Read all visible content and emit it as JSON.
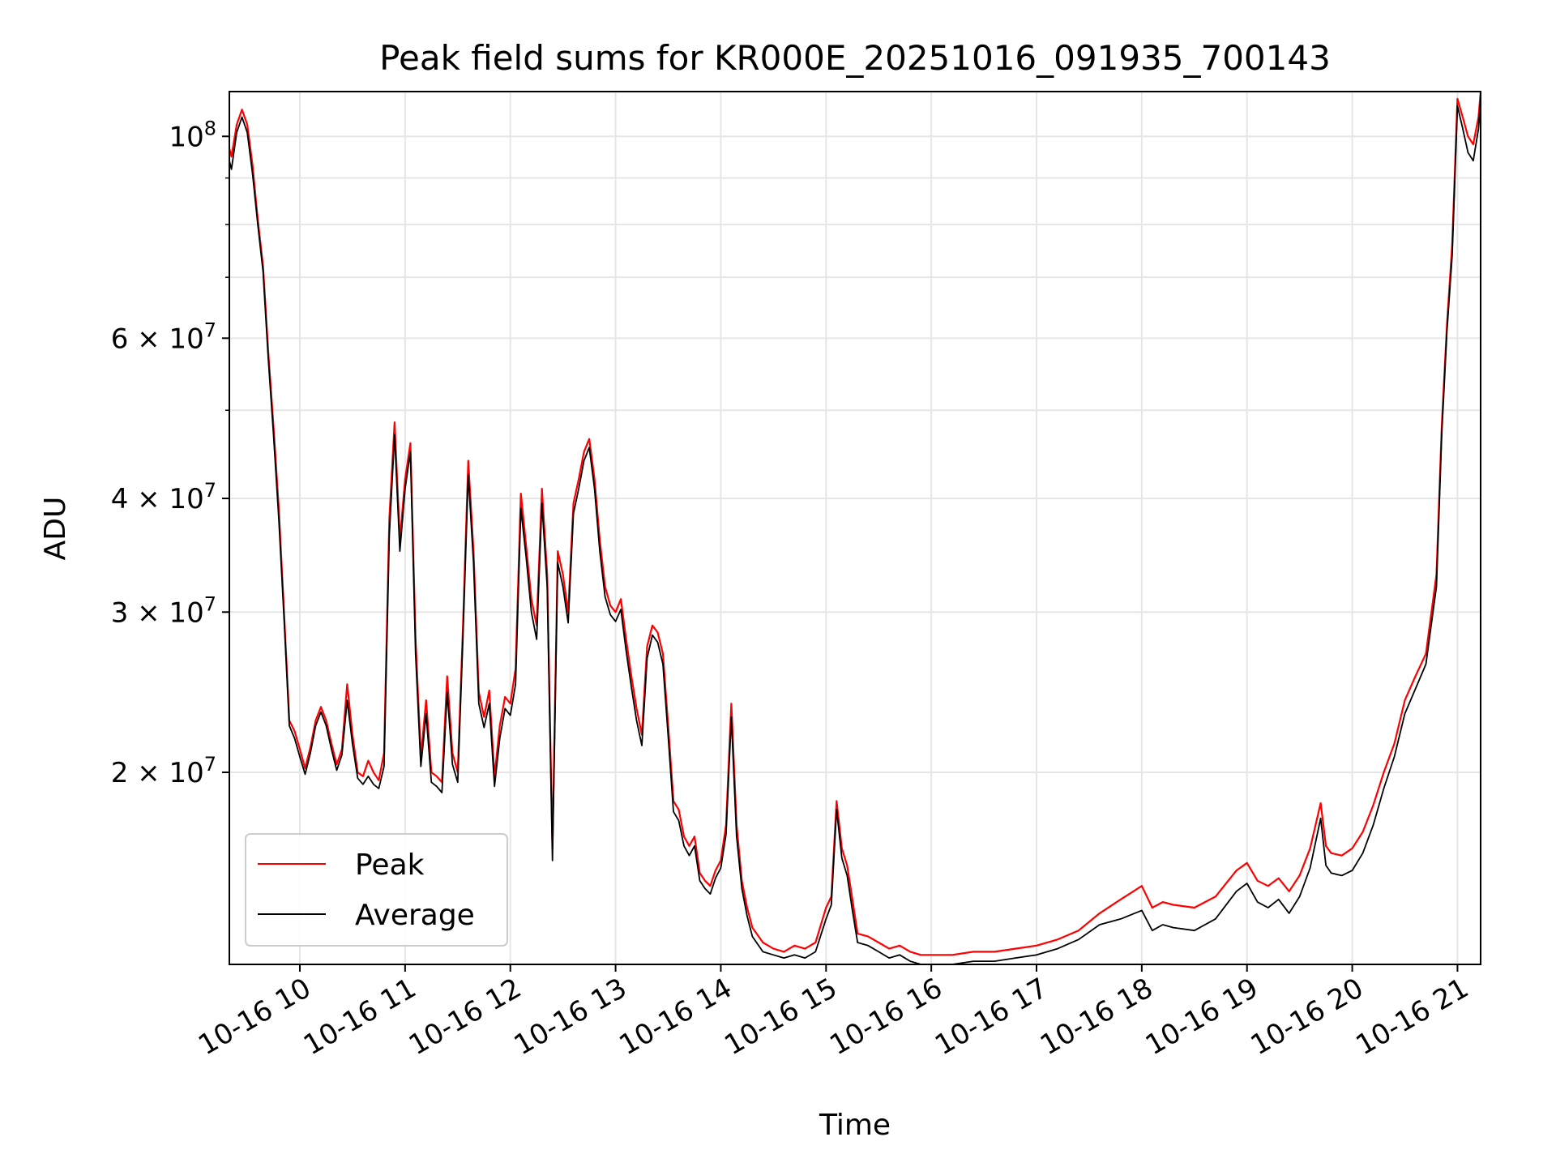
{
  "chart_data": {
    "type": "line",
    "title": "Peak field sums for KR000E_20251016_091935_700143",
    "xlabel": "Time",
    "ylabel": "ADU",
    "yscale": "log",
    "xlim": [
      9.33,
      21.22
    ],
    "ylim": [
      12300000,
      112000000
    ],
    "grid": true,
    "legend_position": "lower-left",
    "x_ticks": [
      {
        "value": 10,
        "label": "10-16 10"
      },
      {
        "value": 11,
        "label": "10-16 11"
      },
      {
        "value": 12,
        "label": "10-16 12"
      },
      {
        "value": 13,
        "label": "10-16 13"
      },
      {
        "value": 14,
        "label": "10-16 14"
      },
      {
        "value": 15,
        "label": "10-16 15"
      },
      {
        "value": 16,
        "label": "10-16 16"
      },
      {
        "value": 17,
        "label": "10-16 17"
      },
      {
        "value": 18,
        "label": "10-16 18"
      },
      {
        "value": 19,
        "label": "10-16 19"
      },
      {
        "value": 20,
        "label": "10-16 20"
      },
      {
        "value": 21,
        "label": "10-16 21"
      }
    ],
    "y_ticks": [
      {
        "value": 100000000,
        "mantissa": "",
        "base": "10",
        "exp": "8"
      },
      {
        "value": 60000000,
        "mantissa": "6",
        "base": "10",
        "exp": "7"
      },
      {
        "value": 40000000,
        "mantissa": "4",
        "base": "10",
        "exp": "7"
      },
      {
        "value": 30000000,
        "mantissa": "3",
        "base": "10",
        "exp": "7"
      },
      {
        "value": 20000000,
        "mantissa": "2",
        "base": "10",
        "exp": "7"
      }
    ],
    "y_minor_ticks": [
      90000000,
      80000000,
      70000000,
      50000000
    ],
    "colors": {
      "peak": "#ff0000",
      "average": "#000000"
    },
    "series": [
      {
        "name": "Peak",
        "color": "#ff0000",
        "x": [
          9.33,
          9.35,
          9.4,
          9.45,
          9.5,
          9.55,
          9.6,
          9.65,
          9.7,
          9.75,
          9.8,
          9.85,
          9.9,
          9.95,
          10.0,
          10.05,
          10.1,
          10.15,
          10.2,
          10.25,
          10.3,
          10.35,
          10.4,
          10.45,
          10.5,
          10.55,
          10.6,
          10.65,
          10.7,
          10.75,
          10.8,
          10.85,
          10.9,
          10.95,
          11.0,
          11.05,
          11.1,
          11.15,
          11.2,
          11.25,
          11.3,
          11.35,
          11.4,
          11.45,
          11.5,
          11.55,
          11.6,
          11.65,
          11.7,
          11.75,
          11.8,
          11.85,
          11.9,
          11.95,
          12.0,
          12.05,
          12.1,
          12.15,
          12.2,
          12.25,
          12.3,
          12.35,
          12.4,
          12.45,
          12.5,
          12.55,
          12.6,
          12.65,
          12.7,
          12.75,
          12.8,
          12.85,
          12.9,
          12.95,
          13.0,
          13.05,
          13.1,
          13.15,
          13.2,
          13.25,
          13.3,
          13.35,
          13.4,
          13.45,
          13.5,
          13.55,
          13.6,
          13.65,
          13.7,
          13.75,
          13.8,
          13.85,
          13.9,
          13.95,
          14.0,
          14.05,
          14.1,
          14.15,
          14.2,
          14.25,
          14.3,
          14.4,
          14.5,
          14.6,
          14.7,
          14.8,
          14.9,
          15.0,
          15.05,
          15.1,
          15.15,
          15.2,
          15.25,
          15.3,
          15.4,
          15.5,
          15.6,
          15.7,
          15.8,
          15.9,
          16.0,
          16.2,
          16.4,
          16.6,
          16.8,
          17.0,
          17.2,
          17.4,
          17.6,
          17.8,
          18.0,
          18.1,
          18.2,
          18.3,
          18.5,
          18.7,
          18.9,
          19.0,
          19.1,
          19.2,
          19.3,
          19.4,
          19.5,
          19.6,
          19.7,
          19.75,
          19.8,
          19.9,
          20.0,
          20.1,
          20.2,
          20.3,
          20.4,
          20.5,
          20.6,
          20.7,
          20.8,
          20.85,
          20.9,
          20.95,
          21.0,
          21.05,
          21.1,
          21.15,
          21.2,
          21.22
        ],
        "y": [
          97000000,
          95000000,
          103000000,
          107000000,
          103000000,
          93000000,
          81000000,
          72000000,
          58000000,
          48000000,
          39000000,
          30000000,
          22800000,
          22200000,
          21200000,
          20200000,
          21300000,
          22800000,
          23600000,
          22800000,
          21500000,
          20400000,
          21200000,
          25000000,
          22000000,
          20000000,
          19800000,
          20600000,
          20000000,
          19600000,
          21000000,
          38000000,
          48500000,
          36000000,
          42000000,
          46000000,
          28000000,
          20800000,
          24000000,
          20000000,
          19800000,
          19500000,
          25500000,
          21000000,
          20000000,
          29000000,
          44000000,
          35000000,
          24500000,
          23000000,
          24600000,
          19800000,
          22500000,
          24200000,
          23800000,
          26000000,
          40500000,
          35500000,
          31000000,
          29000000,
          41000000,
          33000000,
          16500000,
          35000000,
          33000000,
          30000000,
          39500000,
          42000000,
          45000000,
          46500000,
          42000000,
          36000000,
          32000000,
          30500000,
          30000000,
          31000000,
          28000000,
          25500000,
          23500000,
          22000000,
          27500000,
          29000000,
          28500000,
          27000000,
          22500000,
          18600000,
          18200000,
          17000000,
          16600000,
          17000000,
          15500000,
          15200000,
          15000000,
          15600000,
          16000000,
          17500000,
          23800000,
          17500000,
          15200000,
          14200000,
          13500000,
          13000000,
          12800000,
          12700000,
          12900000,
          12800000,
          13000000,
          14200000,
          14600000,
          18600000,
          16500000,
          15800000,
          14500000,
          13300000,
          13200000,
          13000000,
          12800000,
          12900000,
          12700000,
          12600000,
          12600000,
          12600000,
          12700000,
          12700000,
          12800000,
          12900000,
          13100000,
          13400000,
          14000000,
          14500000,
          15000000,
          14200000,
          14400000,
          14300000,
          14200000,
          14600000,
          15600000,
          15900000,
          15200000,
          15000000,
          15300000,
          14800000,
          15400000,
          16500000,
          18500000,
          16600000,
          16300000,
          16200000,
          16500000,
          17200000,
          18400000,
          20000000,
          21500000,
          24000000,
          25500000,
          27000000,
          33000000,
          48000000,
          62000000,
          76000000,
          110000000,
          105000000,
          100000000,
          98000000,
          105000000,
          112000000
        ]
      },
      {
        "name": "Average",
        "color": "#000000",
        "x": [
          9.33,
          9.35,
          9.4,
          9.45,
          9.5,
          9.55,
          9.6,
          9.65,
          9.7,
          9.75,
          9.8,
          9.85,
          9.9,
          9.95,
          10.0,
          10.05,
          10.1,
          10.15,
          10.2,
          10.25,
          10.3,
          10.35,
          10.4,
          10.45,
          10.5,
          10.55,
          10.6,
          10.65,
          10.7,
          10.75,
          10.8,
          10.85,
          10.9,
          10.95,
          11.0,
          11.05,
          11.1,
          11.15,
          11.2,
          11.25,
          11.3,
          11.35,
          11.4,
          11.45,
          11.5,
          11.55,
          11.6,
          11.65,
          11.7,
          11.75,
          11.8,
          11.85,
          11.9,
          11.95,
          12.0,
          12.05,
          12.1,
          12.15,
          12.2,
          12.25,
          12.3,
          12.35,
          12.4,
          12.45,
          12.5,
          12.55,
          12.6,
          12.65,
          12.7,
          12.75,
          12.8,
          12.85,
          12.9,
          12.95,
          13.0,
          13.05,
          13.1,
          13.15,
          13.2,
          13.25,
          13.3,
          13.35,
          13.4,
          13.45,
          13.5,
          13.55,
          13.6,
          13.65,
          13.7,
          13.75,
          13.8,
          13.85,
          13.9,
          13.95,
          14.0,
          14.05,
          14.1,
          14.15,
          14.2,
          14.25,
          14.3,
          14.4,
          14.5,
          14.6,
          14.7,
          14.8,
          14.9,
          15.0,
          15.05,
          15.1,
          15.15,
          15.2,
          15.25,
          15.3,
          15.4,
          15.5,
          15.6,
          15.7,
          15.8,
          15.9,
          16.0,
          16.2,
          16.4,
          16.6,
          16.8,
          17.0,
          17.2,
          17.4,
          17.6,
          17.8,
          18.0,
          18.1,
          18.2,
          18.3,
          18.5,
          18.7,
          18.9,
          19.0,
          19.1,
          19.2,
          19.3,
          19.4,
          19.5,
          19.6,
          19.7,
          19.75,
          19.8,
          19.9,
          20.0,
          20.1,
          20.2,
          20.3,
          20.4,
          20.5,
          20.6,
          20.7,
          20.8,
          20.85,
          20.9,
          20.95,
          21.0,
          21.05,
          21.1,
          21.15,
          21.2,
          21.22
        ],
        "y": [
          94000000,
          92000000,
          101000000,
          105000000,
          101000000,
          91000000,
          80000000,
          71000000,
          57000000,
          47000000,
          38000000,
          29500000,
          22500000,
          21800000,
          20800000,
          19900000,
          21000000,
          22500000,
          23300000,
          22500000,
          21200000,
          20100000,
          20900000,
          24000000,
          21500000,
          19700000,
          19400000,
          19800000,
          19400000,
          19200000,
          20300000,
          36500000,
          47000000,
          35000000,
          41000000,
          45000000,
          27000000,
          20300000,
          23200000,
          19500000,
          19300000,
          19000000,
          24500000,
          20400000,
          19500000,
          28200000,
          42500000,
          34000000,
          23800000,
          22400000,
          23800000,
          19300000,
          21800000,
          23500000,
          23100000,
          25000000,
          39000000,
          34500000,
          30000000,
          28000000,
          39500000,
          32000000,
          16000000,
          34000000,
          32000000,
          29200000,
          38500000,
          41000000,
          44000000,
          45500000,
          41000000,
          35000000,
          31200000,
          29800000,
          29300000,
          30200000,
          27200000,
          24800000,
          22800000,
          21400000,
          26700000,
          28300000,
          27800000,
          26300000,
          21900000,
          18100000,
          17700000,
          16600000,
          16200000,
          16600000,
          15200000,
          14900000,
          14700000,
          15300000,
          15700000,
          17100000,
          23000000,
          17000000,
          14900000,
          13900000,
          13200000,
          12700000,
          12600000,
          12500000,
          12600000,
          12500000,
          12700000,
          13800000,
          14300000,
          18200000,
          16100000,
          15400000,
          14100000,
          13000000,
          12900000,
          12700000,
          12500000,
          12600000,
          12400000,
          12300000,
          12300000,
          12300000,
          12400000,
          12400000,
          12500000,
          12600000,
          12800000,
          13100000,
          13600000,
          13800000,
          14100000,
          13400000,
          13600000,
          13500000,
          13400000,
          13800000,
          14800000,
          15100000,
          14400000,
          14200000,
          14500000,
          14000000,
          14600000,
          15700000,
          17800000,
          15800000,
          15500000,
          15400000,
          15600000,
          16300000,
          17500000,
          19200000,
          20800000,
          23200000,
          24700000,
          26300000,
          32000000,
          47000000,
          61000000,
          74000000,
          108000000,
          102000000,
          96000000,
          94000000,
          102000000,
          110000000
        ]
      }
    ]
  }
}
